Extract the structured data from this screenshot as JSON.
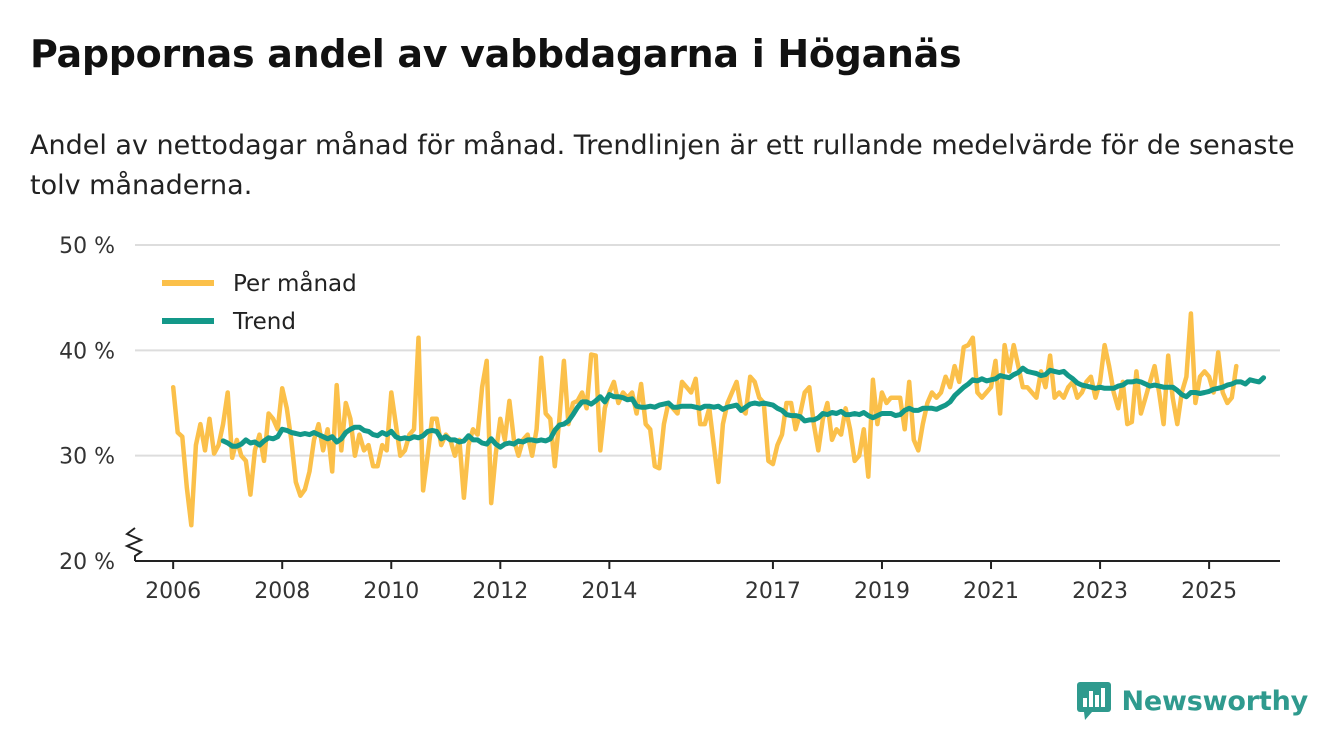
{
  "title": "Pappornas andel av vabbdagarna i Höganäs",
  "subtitle": "Andel av nettodagar månad för månad. Trendlinjen är ett rullande medelvärde för de senaste tolv månaderna.",
  "brand": "Newsworthy",
  "colors": {
    "monthly": "#fbc04a",
    "trend": "#139889",
    "grid": "#dddddd",
    "axis": "#222222",
    "brand": "#2f9a8e"
  },
  "chart_data": {
    "type": "line",
    "title": "Pappornas andel av vabbdagarna i Höganäs",
    "ylabel": "",
    "xlabel": "",
    "ylim": [
      20,
      50
    ],
    "xlim": [
      2005.3,
      2026.3
    ],
    "y_ticks": [
      {
        "value": 20,
        "label": "20 %"
      },
      {
        "value": 30,
        "label": "30 %"
      },
      {
        "value": 40,
        "label": "40 %"
      },
      {
        "value": 50,
        "label": "50 %"
      }
    ],
    "x_ticks": [
      {
        "value": 2006,
        "label": "2006"
      },
      {
        "value": 2008,
        "label": "2008"
      },
      {
        "value": 2010,
        "label": "2010"
      },
      {
        "value": 2012,
        "label": "2012"
      },
      {
        "value": 2014,
        "label": "2014"
      },
      {
        "value": 2017,
        "label": "2017"
      },
      {
        "value": 2019,
        "label": "2019"
      },
      {
        "value": 2021,
        "label": "2021"
      },
      {
        "value": 2023,
        "label": "2023"
      },
      {
        "value": 2025,
        "label": "2025"
      }
    ],
    "legend": [
      {
        "name": "Per månad",
        "series": "monthly"
      },
      {
        "name": "Trend",
        "series": "trend"
      }
    ],
    "series": [
      {
        "name": "Per månad",
        "key": "monthly",
        "x_start": 2006.0,
        "x_step": 0.08333,
        "values": [
          36.5,
          32.2,
          31.8,
          27,
          23.4,
          31,
          33,
          30.5,
          33.5,
          30.2,
          31,
          33,
          36,
          29.8,
          31.5,
          30,
          29.5,
          26.3,
          30.5,
          32,
          29.5,
          34,
          33.5,
          32.5,
          36.4,
          34.5,
          31.5,
          27.5,
          26.2,
          26.8,
          28.5,
          31.5,
          33,
          30.5,
          32.5,
          28.5,
          36.7,
          30.5,
          35,
          33.5,
          30,
          32,
          30.5,
          31,
          29,
          29,
          31,
          30.5,
          36,
          33,
          30,
          30.5,
          32,
          32.5,
          41.2,
          26.7,
          30,
          33.5,
          33.5,
          31,
          32,
          31.5,
          30,
          31.5,
          26,
          31,
          32.5,
          32,
          36.5,
          39,
          25.5,
          30.2,
          33.5,
          31.5,
          35.2,
          31.5,
          30,
          31.5,
          32,
          30,
          32.5,
          39.3,
          34,
          33.5,
          29,
          33.5,
          39,
          33,
          35,
          35.2,
          36,
          34.5,
          39.6,
          39.5,
          30.5,
          34.5,
          36,
          37,
          35,
          36,
          35.5,
          36,
          34,
          36.8,
          33,
          32.5,
          29,
          28.8,
          33,
          35,
          34.5,
          34,
          37,
          36.5,
          36,
          37.3,
          33,
          33,
          34.5,
          31,
          27.5,
          33,
          35,
          36,
          37,
          34.5,
          34,
          37.5,
          37,
          35.5,
          35,
          29.5,
          29.2,
          31,
          32,
          35,
          35,
          32.5,
          34,
          36,
          36.5,
          33,
          30.5,
          33.5,
          35,
          31.5,
          32.5,
          32,
          34.5,
          32.5,
          29.5,
          30,
          32.5,
          28,
          37.2,
          33,
          36,
          35,
          35.5,
          35.5,
          35.5,
          32.5,
          37,
          31.5,
          30.5,
          33,
          35,
          36,
          35.5,
          36,
          37.5,
          36.5,
          38.5,
          37,
          40.3,
          40.5,
          41.2,
          36,
          35.5,
          36,
          36.5,
          39,
          34,
          40.5,
          38,
          40.5,
          38.5,
          36.5,
          36.5,
          36,
          35.5,
          38,
          36.5,
          39.5,
          35.5,
          36,
          35.5,
          36.5,
          37,
          35.5,
          36,
          37,
          37.5,
          35.5,
          37,
          40.5,
          38.5,
          36,
          34.5,
          37,
          33,
          33.2,
          38,
          34,
          35.5,
          37,
          38.5,
          36,
          33,
          39.5,
          35.5,
          33,
          36,
          37.5,
          43.5,
          35,
          37.5,
          38,
          37.5,
          36,
          39.8,
          36,
          35,
          35.5,
          38.5
        ]
      },
      {
        "name": "Trend",
        "key": "trend",
        "x_start": 2006.917,
        "x_step": 0.08333,
        "values": [
          31.4,
          31.2,
          30.9,
          30.9,
          31.1,
          31.5,
          31.2,
          31.3,
          31.0,
          31.4,
          31.7,
          31.6,
          31.8,
          32.5,
          32.4,
          32.2,
          32.1,
          32.0,
          32.1,
          32.0,
          32.2,
          32.0,
          31.8,
          31.6,
          31.8,
          31.3,
          31.6,
          32.2,
          32.5,
          32.7,
          32.7,
          32.4,
          32.3,
          32.0,
          31.9,
          32.2,
          32.0,
          32.3,
          31.8,
          31.6,
          31.7,
          31.6,
          31.8,
          31.7,
          31.9,
          32.3,
          32.4,
          32.3,
          31.6,
          31.8,
          31.5,
          31.5,
          31.3,
          31.4,
          31.9,
          31.5,
          31.5,
          31.2,
          31.1,
          31.6,
          31.1,
          30.8,
          31.1,
          31.2,
          31.1,
          31.4,
          31.3,
          31.5,
          31.5,
          31.4,
          31.5,
          31.4,
          31.6,
          32.4,
          32.9,
          33.0,
          33.3,
          33.9,
          34.6,
          35.1,
          35.1,
          34.9,
          35.2,
          35.6,
          35.1,
          35.8,
          35.6,
          35.6,
          35.5,
          35.3,
          35.4,
          34.7,
          34.6,
          34.6,
          34.7,
          34.6,
          34.8,
          34.9,
          35.0,
          34.6,
          34.6,
          34.7,
          34.7,
          34.7,
          34.6,
          34.5,
          34.7,
          34.7,
          34.6,
          34.7,
          34.4,
          34.6,
          34.7,
          34.8,
          34.3,
          34.6,
          34.9,
          35.0,
          34.9,
          35.0,
          34.9,
          34.8,
          34.5,
          34.3,
          33.9,
          33.8,
          33.8,
          33.7,
          33.3,
          33.4,
          33.4,
          33.6,
          34.0,
          33.9,
          34.1,
          34.0,
          34.2,
          33.9,
          33.9,
          34.0,
          33.9,
          34.1,
          33.8,
          33.6,
          33.8,
          34.0,
          34.0,
          34.0,
          33.8,
          33.9,
          34.3,
          34.5,
          34.3,
          34.3,
          34.5,
          34.5,
          34.5,
          34.4,
          34.6,
          34.8,
          35.1,
          35.7,
          36.1,
          36.5,
          36.8,
          37.2,
          37.1,
          37.3,
          37.1,
          37.2,
          37.3,
          37.6,
          37.5,
          37.4,
          37.7,
          37.9,
          38.3,
          38.0,
          37.9,
          37.8,
          37.6,
          37.7,
          38.1,
          38.0,
          37.9,
          38.0,
          37.6,
          37.3,
          36.9,
          36.7,
          36.6,
          36.5,
          36.4,
          36.5,
          36.4,
          36.4,
          36.4,
          36.6,
          36.7,
          37.0,
          37.0,
          37.1,
          37.0,
          36.8,
          36.6,
          36.7,
          36.6,
          36.5,
          36.5,
          36.5,
          36.2,
          35.8,
          35.6,
          36.0,
          36.0,
          35.9,
          36.0,
          36.1,
          36.3,
          36.4,
          36.5,
          36.7,
          36.8,
          37.0,
          37.0,
          36.8,
          37.2,
          37.1,
          37.0,
          37.4
        ]
      }
    ]
  }
}
